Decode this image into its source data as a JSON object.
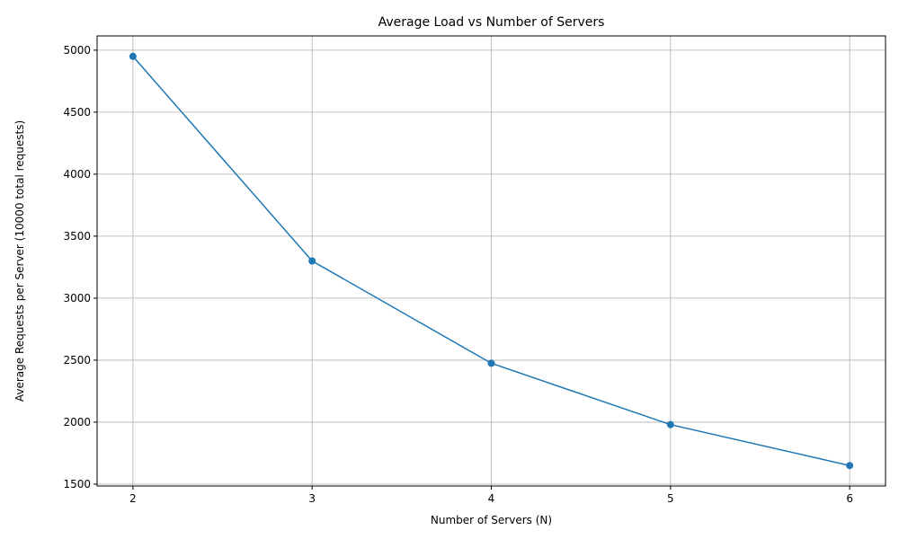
{
  "chart_data": {
    "type": "line",
    "title": "Average Load vs Number of Servers",
    "xlabel": "Number of Servers (N)",
    "ylabel": "Average Requests per Server (10000 total requests)",
    "x": [
      2,
      3,
      4,
      5,
      6
    ],
    "series": [
      {
        "values": [
          4950,
          3300,
          2475,
          1980,
          1650
        ],
        "color": "#1f77b4",
        "marker": "circle"
      }
    ],
    "xlim": [
      1.8,
      6.2
    ],
    "ylim": [
      1485,
      5115
    ],
    "xticks": [
      2,
      3,
      4,
      5,
      6
    ],
    "yticks": [
      1500,
      2000,
      2500,
      3000,
      3500,
      4000,
      4500,
      5000
    ],
    "grid": true
  }
}
